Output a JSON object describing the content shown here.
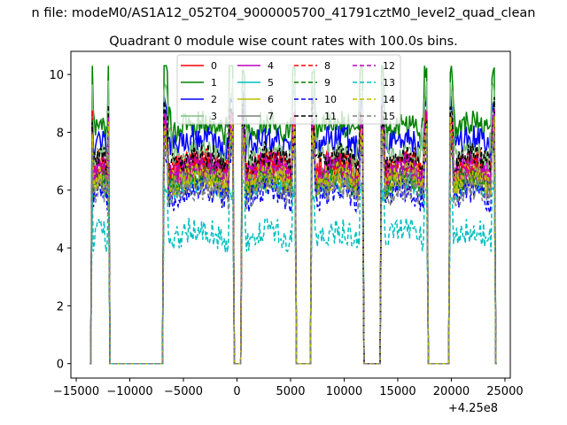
{
  "figure": {
    "suptitle": "n file: modeM0/AS1A12_052T04_9000005700_41791cztM0_level2_quad_clean",
    "title": "Quadrant 0 module wise count rates with 100.0s bins.",
    "offset_label": "+4.25e8"
  },
  "chart_data": {
    "type": "line",
    "title": "Quadrant 0 module wise count rates with 100.0s bins.",
    "xlabel": "",
    "ylabel": "",
    "xlim": [
      -15500,
      25500
    ],
    "ylim": [
      -0.5,
      10.8
    ],
    "x_offset": 425000000,
    "x_ticks": [
      -15000,
      -10000,
      -5000,
      0,
      5000,
      10000,
      15000,
      20000,
      25000
    ],
    "x_tick_labels": [
      "−15000",
      "−10000",
      "−5000",
      "0",
      "5000",
      "10000",
      "15000",
      "20000",
      "25000"
    ],
    "y_ticks": [
      0,
      2,
      4,
      6,
      8,
      10
    ],
    "y_tick_labels": [
      "0",
      "2",
      "4",
      "6",
      "8",
      "10"
    ],
    "legend_position": "top-center",
    "legend_columns": 4,
    "grid": false,
    "segments": [
      {
        "start": -13500,
        "end": -12000
      },
      {
        "start": -6800,
        "end": -400
      },
      {
        "start": 500,
        "end": 5400
      },
      {
        "start": 7000,
        "end": 11700
      },
      {
        "start": 13500,
        "end": 17700
      },
      {
        "start": 19900,
        "end": 24000
      }
    ],
    "series": [
      {
        "name": "0",
        "color": "#ff0000",
        "dash": "solid",
        "base": 7.0
      },
      {
        "name": "1",
        "color": "#008000",
        "dash": "solid",
        "base": 8.3
      },
      {
        "name": "2",
        "color": "#0000ff",
        "dash": "solid",
        "base": 7.8
      },
      {
        "name": "3",
        "color": "#7fbf7f",
        "dash": "solid",
        "base": 7.3
      },
      {
        "name": "4",
        "color": "#bf00bf",
        "dash": "solid",
        "base": 6.9
      },
      {
        "name": "5",
        "color": "#00bfbf",
        "dash": "solid",
        "base": 6.3
      },
      {
        "name": "6",
        "color": "#bfbf00",
        "dash": "solid",
        "base": 6.4
      },
      {
        "name": "7",
        "color": "#7f7f7f",
        "dash": "solid",
        "base": 6.6
      },
      {
        "name": "8",
        "color": "#ff0000",
        "dash": "dashed",
        "base": 6.9
      },
      {
        "name": "9",
        "color": "#008000",
        "dash": "dashed",
        "base": 6.5
      },
      {
        "name": "10",
        "color": "#0000ff",
        "dash": "dashed",
        "base": 6.0
      },
      {
        "name": "11",
        "color": "#000000",
        "dash": "dashed",
        "base": 7.2
      },
      {
        "name": "12",
        "color": "#bf00bf",
        "dash": "dashed",
        "base": 6.8
      },
      {
        "name": "13",
        "color": "#00bfbf",
        "dash": "dashed",
        "base": 4.6
      },
      {
        "name": "14",
        "color": "#bfbf00",
        "dash": "dashed",
        "base": 6.6
      },
      {
        "name": "15",
        "color": "#7f7f7f",
        "dash": "dashed",
        "base": 6.1
      }
    ]
  }
}
